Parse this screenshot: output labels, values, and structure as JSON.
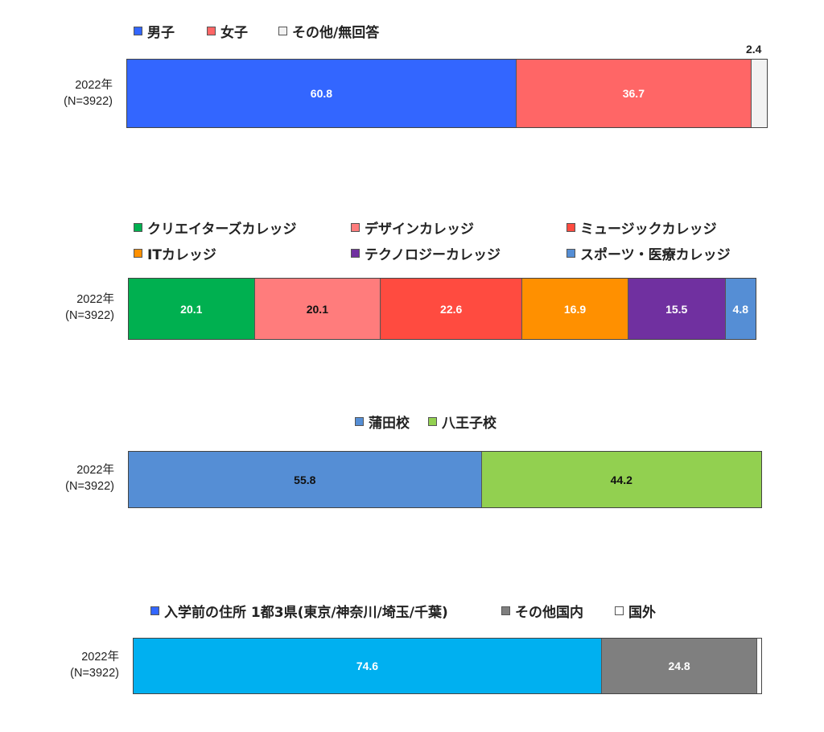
{
  "chart_data": [
    {
      "type": "bar",
      "orientation": "horizontal",
      "stacked": true,
      "categories": [
        "2022年\n(N=3922)"
      ],
      "category_lines": [
        "2022年",
        "(N=3922)"
      ],
      "legend_position": "top",
      "series": [
        {
          "name": "男子",
          "values": [
            60.8
          ],
          "color": "#3366ff",
          "label": "60.8",
          "label_color": "#ffffff"
        },
        {
          "name": "女子",
          "values": [
            36.7
          ],
          "color": "#ff6666",
          "label": "36.7",
          "label_color": "#ffffff"
        },
        {
          "name": "その他/無回答",
          "values": [
            2.4
          ],
          "color": "#f2f2f2",
          "label": "2.4",
          "label_color": "#222222"
        }
      ]
    },
    {
      "type": "bar",
      "orientation": "horizontal",
      "stacked": true,
      "categories": [
        "2022年\n(N=3922)"
      ],
      "category_lines": [
        "2022年",
        "(N=3922)"
      ],
      "legend_position": "top",
      "series": [
        {
          "name": "クリエイターズカレッジ",
          "values": [
            20.1
          ],
          "color": "#00b050",
          "label": "20.1",
          "label_color": "#ffffff"
        },
        {
          "name": "デザインカレッジ",
          "values": [
            20.1
          ],
          "color": "#ff7c7c",
          "label": "20.1",
          "label_color": "#111111"
        },
        {
          "name": "ミュージックカレッジ",
          "values": [
            22.6
          ],
          "color": "#ff4b40",
          "label": "22.6",
          "label_color": "#ffffff"
        },
        {
          "name": "ITカレッジ",
          "values": [
            16.9
          ],
          "color": "#ff9000",
          "label": "16.9",
          "label_color": "#ffffff"
        },
        {
          "name": "テクノロジーカレッジ",
          "values": [
            15.5
          ],
          "color": "#7030a0",
          "label": "15.5",
          "label_color": "#ffffff"
        },
        {
          "name": "スポーツ・医療カレッジ",
          "values": [
            4.8
          ],
          "color": "#558ed5",
          "label": "4.8",
          "label_color": "#ffffff"
        }
      ]
    },
    {
      "type": "bar",
      "orientation": "horizontal",
      "stacked": true,
      "categories": [
        "2022年\n(N=3922)"
      ],
      "category_lines": [
        "2022年",
        "(N=3922)"
      ],
      "legend_position": "top",
      "series": [
        {
          "name": "蒲田校",
          "values": [
            55.8
          ],
          "color": "#558ed5",
          "label": "55.8",
          "label_color": "#111111"
        },
        {
          "name": "八王子校",
          "values": [
            44.2
          ],
          "color": "#92d050",
          "label": "44.2",
          "label_color": "#111111"
        }
      ]
    },
    {
      "type": "bar",
      "orientation": "horizontal",
      "stacked": true,
      "categories": [
        "2022年\n(N=3922)"
      ],
      "category_lines": [
        "2022年",
        "(N=3922)"
      ],
      "legend_position": "top",
      "series": [
        {
          "name": "入学前の住所 1都3県(東京/神奈川/埼玉/千葉)",
          "values": [
            74.6
          ],
          "color": "#00b0f0",
          "label": "74.6",
          "label_color": "#ffffff"
        },
        {
          "name": "その他国内",
          "values": [
            24.8
          ],
          "color": "#7f7f7f",
          "label": "24.8",
          "label_color": "#ffffff"
        },
        {
          "name": "国外",
          "values": [
            0.6
          ],
          "color": "#ffffff",
          "label": "",
          "label_color": "#222222"
        }
      ]
    }
  ]
}
